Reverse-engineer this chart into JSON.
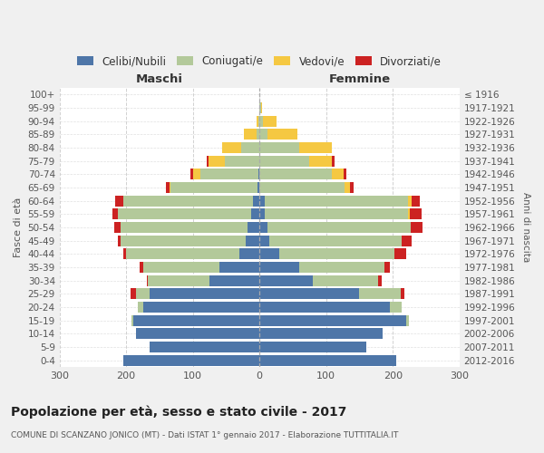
{
  "age_groups": [
    "100+",
    "95-99",
    "90-94",
    "85-89",
    "80-84",
    "75-79",
    "70-74",
    "65-69",
    "60-64",
    "55-59",
    "50-54",
    "45-49",
    "40-44",
    "35-39",
    "30-34",
    "25-29",
    "20-24",
    "15-19",
    "10-14",
    "5-9",
    "0-4"
  ],
  "birth_years": [
    "≤ 1916",
    "1917-1921",
    "1922-1926",
    "1927-1931",
    "1932-1936",
    "1937-1941",
    "1942-1946",
    "1947-1951",
    "1952-1956",
    "1957-1961",
    "1962-1966",
    "1967-1971",
    "1972-1976",
    "1977-1981",
    "1982-1986",
    "1987-1991",
    "1992-1996",
    "1997-2001",
    "2002-2006",
    "2007-2011",
    "2012-2016"
  ],
  "maschi": {
    "celibi": [
      0,
      0,
      0,
      0,
      0,
      0,
      1,
      3,
      10,
      12,
      18,
      20,
      30,
      60,
      75,
      165,
      175,
      190,
      185,
      165,
      205
    ],
    "coniugati": [
      0,
      0,
      2,
      5,
      28,
      52,
      88,
      130,
      195,
      200,
      190,
      188,
      170,
      115,
      92,
      20,
      8,
      2,
      0,
      0,
      0
    ],
    "vedovi": [
      0,
      0,
      3,
      18,
      28,
      25,
      10,
      2,
      0,
      0,
      0,
      0,
      0,
      0,
      0,
      0,
      0,
      0,
      0,
      0,
      0
    ],
    "divorziati": [
      0,
      0,
      0,
      0,
      0,
      2,
      5,
      5,
      12,
      8,
      10,
      5,
      5,
      5,
      2,
      8,
      0,
      0,
      0,
      0,
      0
    ]
  },
  "femmine": {
    "nubili": [
      0,
      0,
      0,
      0,
      0,
      0,
      0,
      0,
      8,
      8,
      12,
      15,
      30,
      60,
      80,
      150,
      195,
      220,
      185,
      160,
      205
    ],
    "coniugate": [
      0,
      2,
      5,
      12,
      60,
      75,
      108,
      128,
      215,
      215,
      215,
      198,
      172,
      128,
      98,
      62,
      18,
      4,
      0,
      0,
      0
    ],
    "vedove": [
      0,
      2,
      20,
      45,
      48,
      33,
      18,
      8,
      5,
      2,
      0,
      0,
      0,
      0,
      0,
      0,
      0,
      0,
      0,
      0,
      0
    ],
    "divorziate": [
      0,
      0,
      0,
      0,
      0,
      5,
      5,
      5,
      12,
      18,
      18,
      15,
      18,
      8,
      5,
      5,
      0,
      0,
      0,
      0,
      0
    ]
  },
  "colors": {
    "celibi_nubili": "#4e76a8",
    "coniugati": "#b3c99a",
    "vedovi": "#f5c842",
    "divorziati": "#cc2222"
  },
  "xlim": 300,
  "title": "Popolazione per età, sesso e stato civile - 2017",
  "subtitle": "COMUNE DI SCANZANO JONICO (MT) - Dati ISTAT 1° gennaio 2017 - Elaborazione TUTTITALIA.IT",
  "xlabel_maschi": "Maschi",
  "xlabel_femmine": "Femmine",
  "ylabel_left": "Fasce di età",
  "ylabel_right": "Anni di nascita",
  "legend_labels": [
    "Celibi/Nubili",
    "Coniugati/e",
    "Vedovi/e",
    "Divorziati/e"
  ],
  "bg_color": "#f0f0f0",
  "plot_bg_color": "#ffffff"
}
